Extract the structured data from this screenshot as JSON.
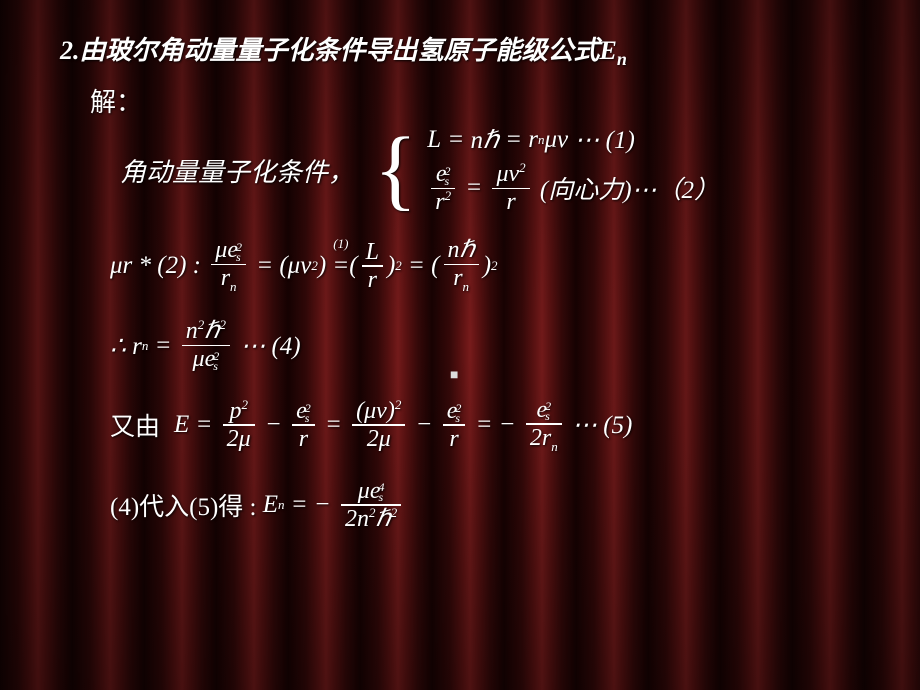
{
  "title_prefix": "2.",
  "title_text": "由玻尔角动量量子化条件导出氢原子能级公式",
  "title_symbol_base": "E",
  "title_symbol_sub": "n",
  "solution_label": "解：",
  "condition_label": "角动量量子化条件，",
  "system": {
    "eq1_lhs": "L",
    "eq1_mid": "nℏ",
    "eq1_rhs_r": "r",
    "eq1_rhs_rn": "n",
    "eq1_rhs_mu": "μv",
    "eq1_tag": "⋯ (1)",
    "eq2_num_base": "e",
    "eq2_num_sup": "2",
    "eq2_num_sub": "s",
    "eq2_den_base": "r",
    "eq2_den_sup": "2",
    "eq2_rhs_num": "μv",
    "eq2_rhs_num_sup": "2",
    "eq2_rhs_den": "r",
    "eq2_note": "(向心力)",
    "eq2_tag": "⋯（2）"
  },
  "line3": {
    "prefix": "μr * (2) :",
    "f1_num": "μe",
    "f1_num_supsub_sup": "2",
    "f1_num_supsub_sub": "s",
    "f1_den": "r",
    "f1_den_sub": "n",
    "eq": "=",
    "mid1_open": "(",
    "mid1_mu": "μv",
    "mid1_sup": "2",
    "mid1_close": ")",
    "over_eq_note": "(1)",
    "f2_open": "(",
    "f2_num": "L",
    "f2_den": "r",
    "f2_close": ")",
    "sq": "2",
    "f3_open": "(",
    "f3_num": "nℏ",
    "f3_den": "r",
    "f3_den_sub": "n",
    "f3_close": ")"
  },
  "line4": {
    "prefix": "∴ r",
    "prefix_sub": "n",
    "eq": "=",
    "num_n": "n",
    "num_h": "ℏ",
    "sup2": "2",
    "den_mu": "μe",
    "den_supsub_sup": "2",
    "den_supsub_sub": "s",
    "tag": "⋯ (4)"
  },
  "line5": {
    "prefix": "又由",
    "E": "E",
    "eq": "=",
    "t1_num": "p",
    "t1_sup": "2",
    "t1_den": "2μ",
    "minus": "−",
    "t2_num": "e",
    "t2_supsub_sup": "2",
    "t2_supsub_sub": "s",
    "t2_den": "r",
    "t3_num_open": "(μv)",
    "t3_num_sup": "2",
    "t3_den": "2μ",
    "t4_den": "2r",
    "t4_den_sub": "n",
    "tag": "⋯ (5)"
  },
  "line6": {
    "prefix": "(4)代入(5)得 :",
    "E": "E",
    "E_sub": "n",
    "eq": "= −",
    "num_mu": "μe",
    "num_sup": "4",
    "num_sub": "s",
    "den_2n": "2n",
    "den_h": "ℏ",
    "sup2": "2"
  },
  "colors": {
    "title": "#00a0ff",
    "text": "#ffffff",
    "background_dark": "#2a0505"
  }
}
